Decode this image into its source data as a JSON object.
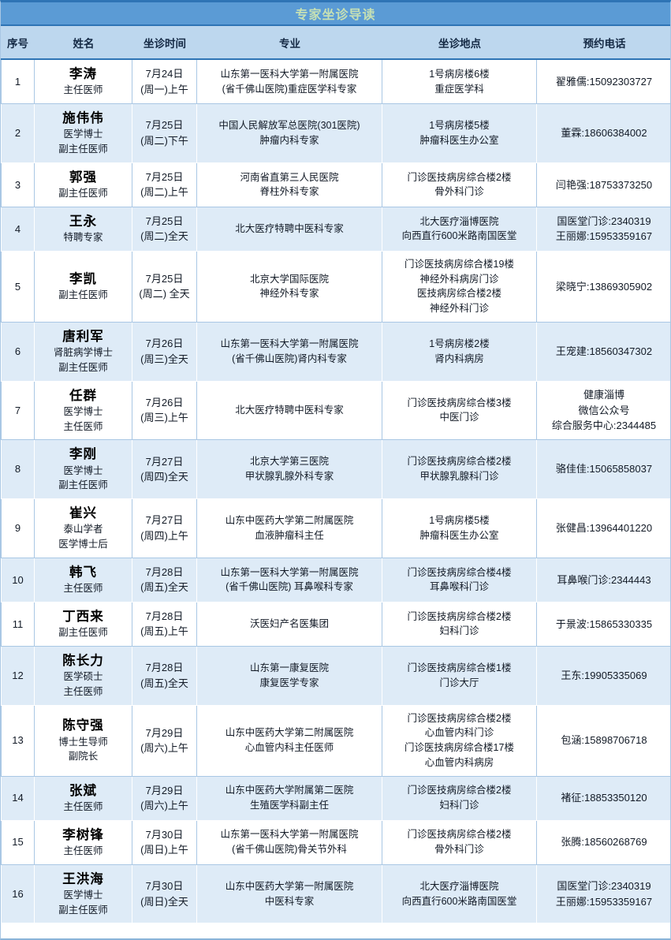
{
  "title": "专家坐诊导读",
  "columns": [
    "序号",
    "姓名",
    "坐诊时间",
    "专业",
    "坐诊地点",
    "预约电话"
  ],
  "colors": {
    "title_bg": "#5B9BD5",
    "title_text": "#C6E0B4",
    "header_bg": "#BDD7EE",
    "row_alt_bg": "#DEEBF7",
    "accent_line": "#2E74B5"
  },
  "rows": [
    {
      "no": "1",
      "name": "李涛",
      "titles": [
        "主任医师"
      ],
      "time": [
        "7月24日",
        "(周一)上午"
      ],
      "specialty": [
        "山东第一医科大学第一附属医院",
        "(省千佛山医院)重症医学科专家"
      ],
      "location": [
        "1号病房楼6楼",
        "重症医学科"
      ],
      "phone": [
        "翟雅儒:15092303727"
      ]
    },
    {
      "no": "2",
      "name": "施伟伟",
      "titles": [
        "医学博士",
        "副主任医师"
      ],
      "time": [
        "7月25日",
        "(周二)下午"
      ],
      "specialty": [
        "中国人民解放军总医院(301医院)",
        "肿瘤内科专家"
      ],
      "location": [
        "1号病房楼5楼",
        "肿瘤科医生办公室"
      ],
      "phone": [
        "董霖:18606384002"
      ]
    },
    {
      "no": "3",
      "name": "郭强",
      "titles": [
        "副主任医师"
      ],
      "time": [
        "7月25日",
        "(周二)上午"
      ],
      "specialty": [
        "河南省直第三人民医院",
        "脊柱外科专家"
      ],
      "location": [
        "门诊医技病房综合楼2楼",
        "骨外科门诊"
      ],
      "phone": [
        "闫艳强:18753373250"
      ]
    },
    {
      "no": "4",
      "name": "王永",
      "titles": [
        "特聘专家"
      ],
      "time": [
        "7月25日",
        "(周二)全天"
      ],
      "specialty": [
        "北大医疗特聘中医科专家"
      ],
      "location": [
        "北大医疗淄博医院",
        "向西直行600米路南国医堂"
      ],
      "phone": [
        "国医堂门诊:2340319",
        "王丽娜:15953359167"
      ]
    },
    {
      "no": "5",
      "name": "李凯",
      "titles": [
        "副主任医师"
      ],
      "time": [
        "7月25日",
        "(周二) 全天"
      ],
      "specialty": [
        "北京大学国际医院",
        "神经外科专家"
      ],
      "location": [
        "门诊医技病房综合楼19楼",
        "神经外科病房门诊",
        "医技病房综合楼2楼",
        "神经外科门诊"
      ],
      "phone": [
        "梁晓宁:13869305902"
      ]
    },
    {
      "no": "6",
      "name": "唐利军",
      "titles": [
        "肾脏病学博士",
        "副主任医师"
      ],
      "time": [
        "7月26日",
        "(周三)全天"
      ],
      "specialty": [
        "山东第一医科大学第一附属医院",
        "(省千佛山医院)肾内科专家"
      ],
      "location": [
        "1号病房楼2楼",
        "肾内科病房"
      ],
      "phone": [
        "王宠建:18560347302"
      ]
    },
    {
      "no": "7",
      "name": "任群",
      "titles": [
        "医学博士",
        "主任医师"
      ],
      "time": [
        "7月26日",
        "(周三)上午"
      ],
      "specialty": [
        "北大医疗特聘中医科专家"
      ],
      "location": [
        "门诊医技病房综合楼3楼",
        "中医门诊"
      ],
      "phone": [
        "健康淄博",
        "微信公众号",
        "综合服务中心:2344485"
      ]
    },
    {
      "no": "8",
      "name": "李刚",
      "titles": [
        "医学博士",
        "副主任医师"
      ],
      "time": [
        "7月27日",
        "(周四)全天"
      ],
      "specialty": [
        "北京大学第三医院",
        "甲状腺乳腺外科专家"
      ],
      "location": [
        "门诊医技病房综合楼2楼",
        "甲状腺乳腺科门诊"
      ],
      "phone": [
        "骆佳佳:15065858037"
      ]
    },
    {
      "no": "9",
      "name": "崔兴",
      "titles": [
        "泰山学者",
        "医学博士后"
      ],
      "time": [
        "7月27日",
        "(周四)上午"
      ],
      "specialty": [
        "山东中医药大学第二附属医院",
        "血液肿瘤科主任"
      ],
      "location": [
        "1号病房楼5楼",
        "肿瘤科医生办公室"
      ],
      "phone": [
        "张健昌:13964401220"
      ]
    },
    {
      "no": "10",
      "name": "韩飞",
      "titles": [
        "主任医师"
      ],
      "time": [
        "7月28日",
        "(周五)全天"
      ],
      "specialty": [
        "山东第一医科大学第一附属医院",
        "(省千佛山医院) 耳鼻喉科专家"
      ],
      "location": [
        "门诊医技病房综合楼4楼",
        "耳鼻喉科门诊"
      ],
      "phone": [
        "耳鼻喉门诊:2344443"
      ]
    },
    {
      "no": "11",
      "name": "丁西来",
      "titles": [
        "副主任医师"
      ],
      "time": [
        "7月28日",
        "(周五)上午"
      ],
      "specialty": [
        "沃医妇产名医集团"
      ],
      "location": [
        "门诊医技病房综合楼2楼",
        "妇科门诊"
      ],
      "phone": [
        "于景波:15865330335"
      ]
    },
    {
      "no": "12",
      "name": "陈长力",
      "titles": [
        "医学硕士",
        "主任医师"
      ],
      "time": [
        "7月28日",
        "(周五)全天"
      ],
      "specialty": [
        "山东第一康复医院",
        "康复医学专家"
      ],
      "location": [
        "门诊医技病房综合楼1楼",
        "门诊大厅"
      ],
      "phone": [
        "王东:19905335069"
      ]
    },
    {
      "no": "13",
      "name": "陈守强",
      "titles": [
        "博士生导师",
        "副院长"
      ],
      "time": [
        "7月29日",
        "(周六)上午"
      ],
      "specialty": [
        "山东中医药大学第二附属医院",
        "心血管内科主任医师"
      ],
      "location": [
        "门诊医技病房综合楼2楼",
        "心血管内科门诊",
        "门诊医技病房综合楼17楼",
        "心血管内科病房"
      ],
      "phone": [
        "包涵:15898706718"
      ]
    },
    {
      "no": "14",
      "name": "张斌",
      "titles": [
        "主任医师"
      ],
      "time": [
        "7月29日",
        "(周六)上午"
      ],
      "specialty": [
        "山东中医药大学附属第二医院",
        "生殖医学科副主任"
      ],
      "location": [
        "门诊医技病房综合楼2楼",
        "妇科门诊"
      ],
      "phone": [
        "褚征:18853350120"
      ]
    },
    {
      "no": "15",
      "name": "李树锋",
      "titles": [
        "主任医师"
      ],
      "time": [
        "7月30日",
        "(周日)上午"
      ],
      "specialty": [
        "山东第一医科大学第一附属医院",
        "(省千佛山医院)骨关节外科"
      ],
      "location": [
        "门诊医技病房综合楼2楼",
        "骨外科门诊"
      ],
      "phone": [
        "张腾:18560268769"
      ]
    },
    {
      "no": "16",
      "name": "王洪海",
      "titles": [
        "医学博士",
        "副主任医师"
      ],
      "time": [
        "7月30日",
        "(周日)全天"
      ],
      "specialty": [
        "山东中医药大学第一附属医院",
        "中医科专家"
      ],
      "location": [
        "北大医疗淄博医院",
        "向西直行600米路南国医堂"
      ],
      "phone": [
        "国医堂门诊:2340319",
        "王丽娜:15953359167"
      ]
    }
  ]
}
